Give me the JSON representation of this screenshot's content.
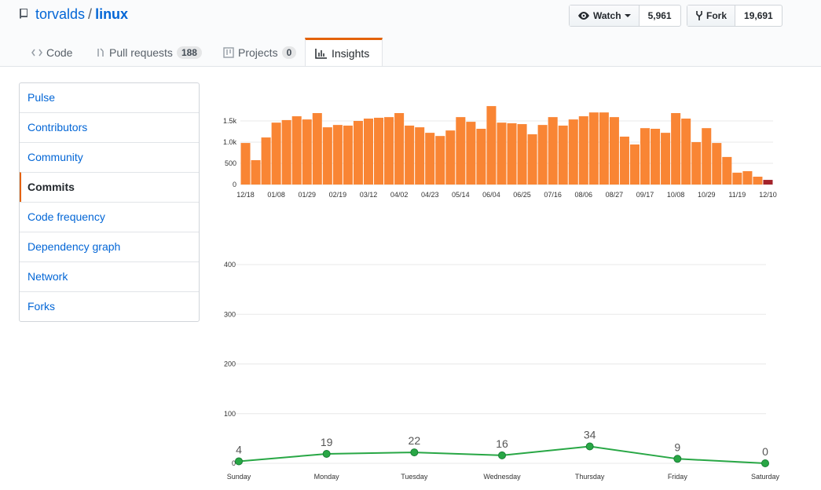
{
  "header": {
    "owner": "torvalds",
    "separator": "/",
    "repo": "linux",
    "watch": {
      "label": "Watch",
      "count": "5,961"
    },
    "fork": {
      "label": "Fork",
      "count": "19,691"
    }
  },
  "tabs": [
    {
      "label": "Code"
    },
    {
      "label": "Pull requests",
      "count": "188"
    },
    {
      "label": "Projects",
      "count": "0"
    },
    {
      "label": "Insights"
    }
  ],
  "sidebar": {
    "items": [
      "Pulse",
      "Contributors",
      "Community",
      "Commits",
      "Code frequency",
      "Dependency graph",
      "Network",
      "Forks"
    ],
    "selected": 3
  },
  "chart_data": [
    {
      "type": "bar",
      "categories": [
        "12/18",
        null,
        null,
        "01/08",
        null,
        null,
        "01/29",
        null,
        null,
        "02/19",
        null,
        null,
        "03/12",
        null,
        null,
        "04/02",
        null,
        null,
        "04/23",
        null,
        null,
        "05/14",
        null,
        null,
        "06/04",
        null,
        null,
        "06/25",
        null,
        null,
        "07/16",
        null,
        null,
        "08/06",
        null,
        null,
        "08/27",
        null,
        null,
        "09/17",
        null,
        null,
        "10/08",
        null,
        null,
        "10/29",
        null,
        null,
        "11/19",
        null,
        null,
        "12/10"
      ],
      "values": [
        980,
        575,
        1110,
        1460,
        1520,
        1610,
        1535,
        1685,
        1350,
        1405,
        1390,
        1500,
        1555,
        1575,
        1590,
        1685,
        1390,
        1350,
        1220,
        1145,
        1275,
        1590,
        1480,
        1315,
        1850,
        1460,
        1445,
        1425,
        1185,
        1405,
        1590,
        1390,
        1535,
        1610,
        1700,
        1700,
        1590,
        1130,
        945,
        1330,
        1315,
        1220,
        1685,
        1555,
        1000,
        1330,
        980,
        650,
        280,
        315,
        185,
        110
      ],
      "color": "#f98534",
      "last_color": "#a3232b",
      "ylim": [
        0,
        2000
      ],
      "yticks": [
        0,
        500,
        {
          "value": 1000,
          "label": "1.0k"
        },
        {
          "value": 1500,
          "label": "1.5k"
        }
      ],
      "grid": true
    },
    {
      "type": "line",
      "categories": [
        "Sunday",
        "Monday",
        "Tuesday",
        "Wednesday",
        "Thursday",
        "Friday",
        "Saturday"
      ],
      "values": [
        4,
        19,
        22,
        16,
        34,
        9,
        0
      ],
      "color": "#28a745",
      "ylim": [
        0,
        400
      ],
      "yticks": [
        0,
        100,
        200,
        300,
        400
      ],
      "grid": true
    }
  ]
}
